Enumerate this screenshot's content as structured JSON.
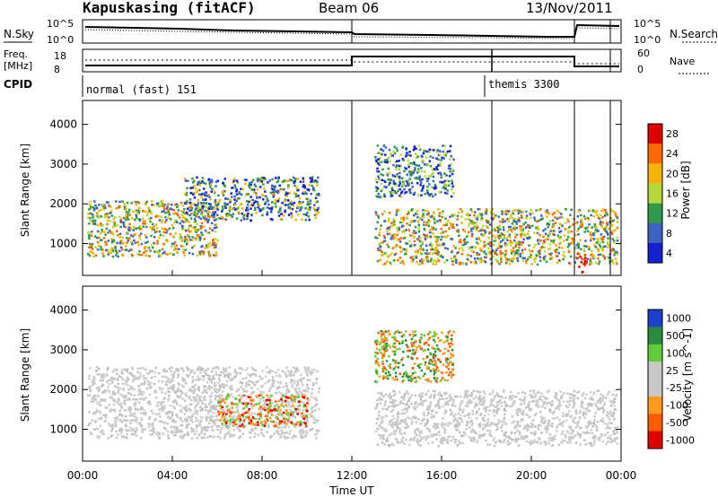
{
  "header": {
    "station": "Kapuskasing (fitACF)",
    "beam": "Beam 06",
    "date": "13/Nov/2011"
  },
  "noise_panel": {
    "left_label": "N.Sky",
    "right_label": "N.Search",
    "tick_labels": [
      "10^5",
      "10^0"
    ]
  },
  "freq_panel": {
    "left_label_1": "Freq.",
    "left_label_2": "[MHz]",
    "right_label": "Nave",
    "left_ticks": [
      "18",
      "8"
    ],
    "right_ticks": [
      "60",
      "0"
    ]
  },
  "cpid_panel": {
    "label": "CPID",
    "modes": [
      "normal (fast) 151",
      "themis 3300"
    ]
  },
  "chart_data": [
    {
      "type": "heatmap",
      "ylabel": "Slant Range [km]",
      "yticks": [
        1000,
        2000,
        3000,
        4000
      ],
      "ylim": [
        200,
        4600
      ],
      "xlim": [
        0,
        24
      ],
      "colorbar": {
        "label": "Power [dB]",
        "ticks": [
          "28",
          "24",
          "20",
          "16",
          "12",
          "8",
          "4"
        ],
        "colors": [
          "#e00000",
          "#ff6a00",
          "#f2b400",
          "#b6d93a",
          "#2f9a4a",
          "#3d63c2",
          "#1520d0"
        ]
      },
      "features": [
        {
          "t_start": 0.2,
          "t_end": 6.0,
          "r_min": 700,
          "r_max": 2100,
          "level": "green-yellow"
        },
        {
          "t_start": 4.5,
          "t_end": 10.5,
          "r_min": 1600,
          "r_max": 2700,
          "level": "blue-ring"
        },
        {
          "t_start": 13.0,
          "t_end": 23.8,
          "r_min": 500,
          "r_max": 1900,
          "level": "green-yellow"
        },
        {
          "t_start": 13.0,
          "t_end": 16.5,
          "r_min": 2200,
          "r_max": 3500,
          "level": "blue-green"
        },
        {
          "t_start": 22.0,
          "t_end": 22.4,
          "r_min": 250,
          "r_max": 800,
          "level": "red"
        }
      ]
    },
    {
      "type": "heatmap",
      "xlabel": "Time UT",
      "xticks": [
        "00:00",
        "04:00",
        "08:00",
        "12:00",
        "16:00",
        "20:00",
        "00:00"
      ],
      "ylabel": "Slant Range [km]",
      "yticks": [
        1000,
        2000,
        3000,
        4000
      ],
      "ylim": [
        200,
        4600
      ],
      "xlim": [
        0,
        24
      ],
      "colorbar": {
        "label": "Velocity [m s^-1]",
        "ticks": [
          "1000",
          "500",
          "100",
          "25",
          "-25",
          "-100",
          "-500",
          "-1000"
        ],
        "colors": [
          "#1c3fcc",
          "#2a8a3e",
          "#62cc3a",
          "#c8c8c8",
          "#c8c8c8",
          "#ff9a1e",
          "#ff5a00",
          "#e00000"
        ]
      },
      "features": [
        {
          "t_start": 0.2,
          "t_end": 10.5,
          "r_min": 800,
          "r_max": 2600,
          "level": "grey"
        },
        {
          "t_start": 6.0,
          "t_end": 10.0,
          "r_min": 1100,
          "r_max": 1900,
          "level": "orange-red"
        },
        {
          "t_start": 13.0,
          "t_end": 23.8,
          "r_min": 600,
          "r_max": 2000,
          "level": "grey"
        },
        {
          "t_start": 13.0,
          "t_end": 16.5,
          "r_min": 2200,
          "r_max": 3500,
          "level": "orange-green"
        }
      ]
    }
  ]
}
